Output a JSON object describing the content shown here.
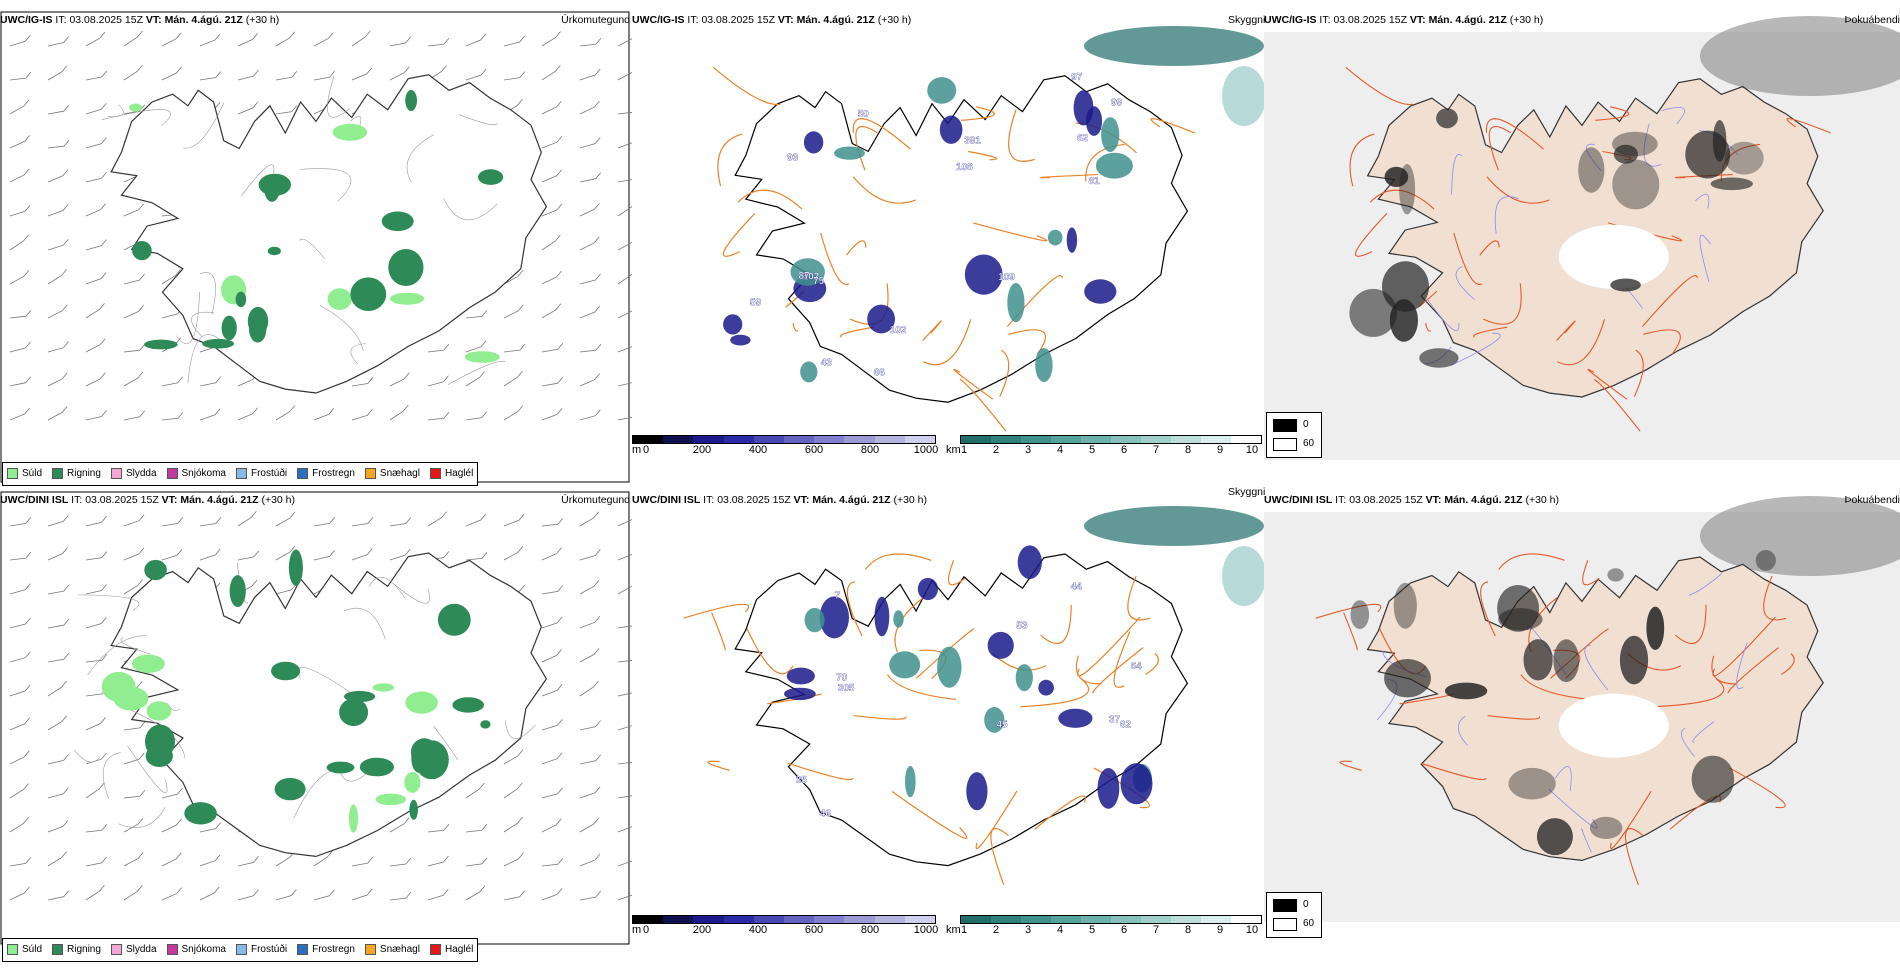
{
  "title_row1": {
    "model": "UWC/IG-IS",
    "it_label": "IT:",
    "it_value": "03.08.2025 15Z",
    "vt_label": "VT:",
    "vt_value": "Mán. 4.ágú. 21Z",
    "lead": "(+30 h)"
  },
  "title_row2": {
    "model": "UWC/DINI ISL",
    "it_label": "IT:",
    "it_value": "03.08.2025 15Z",
    "vt_label": "VT:",
    "vt_value": "Mán. 4.ágú. 21Z",
    "lead": "(+30 h)"
  },
  "fields": {
    "precip": "Úrkomutegund",
    "visibility": "Skyggni",
    "fog": "Þokuábendi"
  },
  "precip_legend": [
    {
      "label": "Súld",
      "color": "#90ee90"
    },
    {
      "label": "Rigning",
      "color": "#2e8b57"
    },
    {
      "label": "Slydda",
      "color": "#f4a6d7"
    },
    {
      "label": "Snjókoma",
      "color": "#c0399b"
    },
    {
      "label": "Frostúði",
      "color": "#8ab8e8"
    },
    {
      "label": "Frostregn",
      "color": "#2a6fbf"
    },
    {
      "label": "Snæhagl",
      "color": "#f5a623"
    },
    {
      "label": "Haglél",
      "color": "#e8161a"
    }
  ],
  "cloud_base_bar": {
    "unit": "m",
    "ticks": [
      "0",
      "200",
      "400",
      "600",
      "800",
      "1000"
    ],
    "colors": [
      "#000000",
      "#10104f",
      "#1a1a8c",
      "#2b2ba8",
      "#4848b4",
      "#6464c0",
      "#8080cc",
      "#9a9ad6",
      "#b4b4e0",
      "#d0d0ee"
    ]
  },
  "visibility_bar": {
    "unit": "km",
    "ticks": [
      "1",
      "2",
      "3",
      "4",
      "5",
      "6",
      "7",
      "8",
      "9",
      "10"
    ],
    "colors": [
      "#1f6e6a",
      "#2f807c",
      "#3f918c",
      "#55a19c",
      "#6db1ac",
      "#86c1bc",
      "#a0d0cc",
      "#bcdfdc",
      "#d8efec",
      "#ffffff"
    ]
  },
  "fog_legend": {
    "low": "0",
    "high": "60",
    "low_color": "#000000",
    "high_color": "#ffffff"
  },
  "map_labels_row1": [
    "102",
    "81",
    "97",
    "391",
    "93",
    "75",
    "62",
    "59",
    "109",
    "66",
    "99",
    "108",
    "102",
    "87",
    "43",
    "50"
  ],
  "map_labels_row2": [
    "45",
    "305",
    "44",
    "62",
    "37",
    "7",
    "53",
    "35",
    "64",
    "46",
    "70"
  ]
}
